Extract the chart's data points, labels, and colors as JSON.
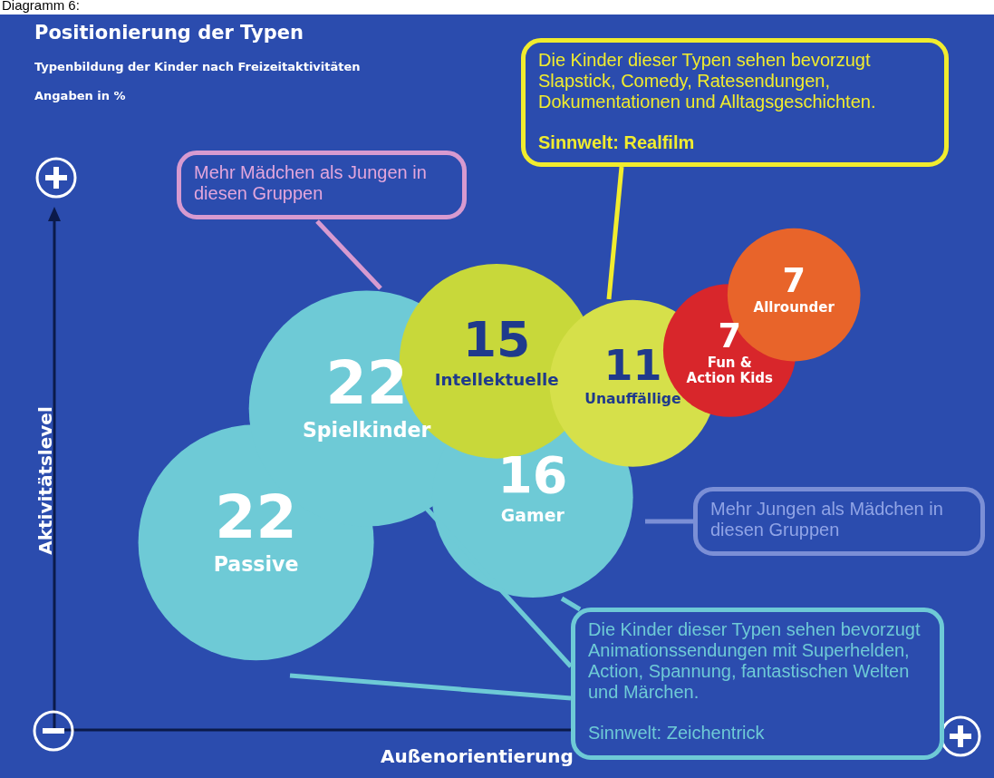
{
  "chart_data": {
    "type": "other",
    "title": "Positionierung der Typen",
    "subtitle": "Typenbildung der Kinder nach Freizeitaktivitäten",
    "xlabel": "Außenorientierung",
    "ylabel": "Aktivitätslevel",
    "data_labels": true,
    "annotations": [
      "Diagramm 6:",
      "Angaben in %",
      "Mehr Mädchen als Jungen in diesen Gruppen",
      "Die Kinder dieser Typen sehen bevorzugt Slapstick, Comedy, Ratesendungen, Dokumentationen und Alltagsgeschichten.",
      "Sinnwelt: Realfilm",
      "Mehr Jungen als Mädchen in diesen Gruppen",
      "Die Kinder dieser Typen sehen bevorzugt Animationssendungen mit Superhelden, Action, Spannung, fantastischen Welten und Märchen.",
      "Sinnwelt: Zeichentrick"
    ],
    "categories": [
      "Passive",
      "Spielkinder",
      "Gamer",
      "Intellektuelle",
      "Unauffällige",
      "Fun & Action Kids",
      "Allrounder"
    ],
    "values": [
      22,
      22,
      16,
      15,
      11,
      7,
      7
    ],
    "colors": [
      "#6ecad6",
      "#6ecad6",
      "#6ecad6",
      "#c8d83a",
      "#d6e04a",
      "#d8262b",
      "#e8642a"
    ]
  }
}
